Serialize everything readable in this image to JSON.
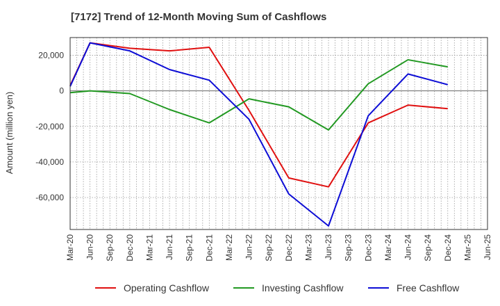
{
  "chart_data": {
    "type": "line",
    "title": "[7172]  Trend of 12-Month Moving Sum of Cashflows",
    "ylabel": "Amount (million yen)",
    "xlabel": "",
    "categories": [
      "Mar-20",
      "Jun-20",
      "Sep-20",
      "Dec-20",
      "Mar-21",
      "Jun-21",
      "Sep-21",
      "Dec-21",
      "Mar-22",
      "Jun-22",
      "Sep-22",
      "Dec-22",
      "Mar-23",
      "Jun-23",
      "Sep-23",
      "Dec-23",
      "Mar-24",
      "Jun-24",
      "Sep-24",
      "Dec-24",
      "Mar-25",
      "Jun-25"
    ],
    "ylim": [
      -78000,
      30000
    ],
    "yticks": [
      20000,
      0,
      -20000,
      -40000,
      -60000
    ],
    "ytick_labels": [
      "20,000",
      "0",
      "-20,000",
      "-40,000",
      "-60,000"
    ],
    "grid": true,
    "legend_position": "bottom",
    "series": [
      {
        "name": "Operating Cashflow",
        "color": "#e01010",
        "points": [
          [
            "Mar-20",
            3000
          ],
          [
            "Jun-20",
            27000
          ],
          [
            "Dec-20",
            24000
          ],
          [
            "Jun-21",
            22500
          ],
          [
            "Dec-21",
            24500
          ],
          [
            "Jun-22",
            -11000
          ],
          [
            "Dec-22",
            -49000
          ],
          [
            "Jun-23",
            -54000
          ],
          [
            "Dec-23",
            -18000
          ],
          [
            "Jun-24",
            -8000
          ],
          [
            "Dec-24",
            -10000
          ]
        ]
      },
      {
        "name": "Investing Cashflow",
        "color": "#229922",
        "points": [
          [
            "Mar-20",
            -1000
          ],
          [
            "Jun-20",
            0
          ],
          [
            "Dec-20",
            -1500
          ],
          [
            "Jun-21",
            -10500
          ],
          [
            "Dec-21",
            -18000
          ],
          [
            "Jun-22",
            -4500
          ],
          [
            "Dec-22",
            -9000
          ],
          [
            "Jun-23",
            -22000
          ],
          [
            "Dec-23",
            4000
          ],
          [
            "Jun-24",
            17500
          ],
          [
            "Dec-24",
            13500
          ]
        ]
      },
      {
        "name": "Free Cashflow",
        "color": "#0d0dd6",
        "points": [
          [
            "Mar-20",
            2500
          ],
          [
            "Jun-20",
            27000
          ],
          [
            "Dec-20",
            22500
          ],
          [
            "Jun-21",
            12000
          ],
          [
            "Dec-21",
            6000
          ],
          [
            "Jun-22",
            -16000
          ],
          [
            "Dec-22",
            -58000
          ],
          [
            "Jun-23",
            -76000
          ],
          [
            "Dec-23",
            -14000
          ],
          [
            "Jun-24",
            9500
          ],
          [
            "Dec-24",
            3500
          ]
        ]
      }
    ]
  }
}
